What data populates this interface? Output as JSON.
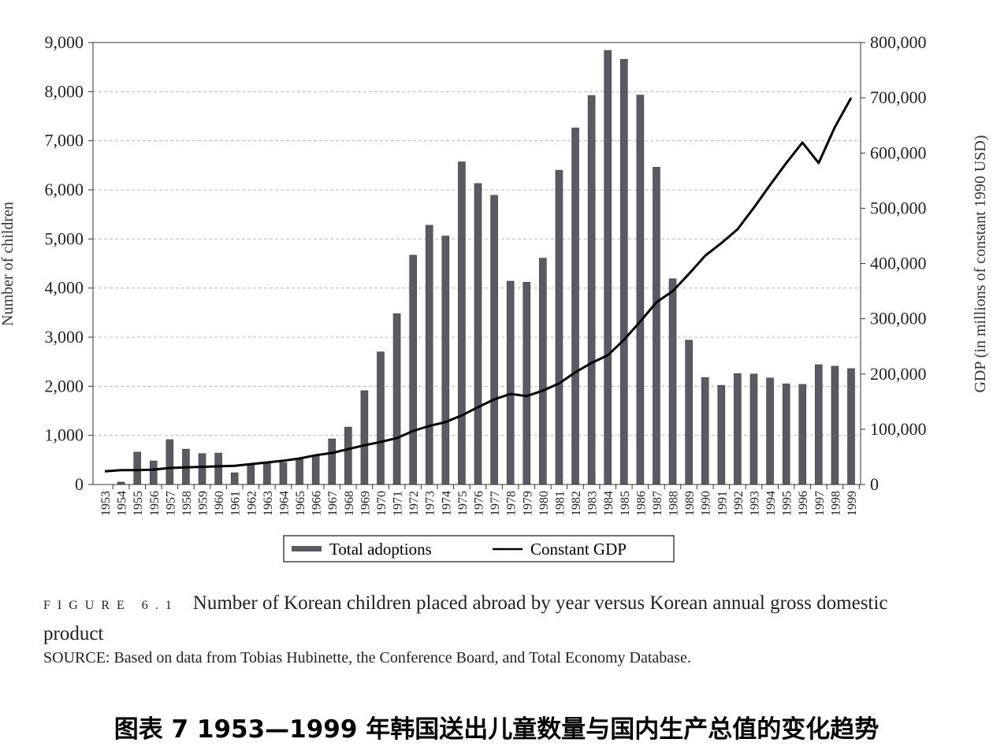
{
  "chart_data": {
    "type": "bar+line",
    "categories": [
      1953,
      1954,
      1955,
      1956,
      1957,
      1958,
      1959,
      1960,
      1961,
      1962,
      1963,
      1964,
      1965,
      1966,
      1967,
      1968,
      1969,
      1970,
      1971,
      1972,
      1973,
      1974,
      1975,
      1976,
      1977,
      1978,
      1979,
      1980,
      1981,
      1982,
      1983,
      1984,
      1985,
      1986,
      1987,
      1988,
      1989,
      1990,
      1991,
      1992,
      1993,
      1994,
      1995,
      1996,
      1997,
      1998,
      1999
    ],
    "series": [
      {
        "name": "Total adoptions",
        "type": "bar",
        "axis": "left",
        "color": "#5b5a60",
        "values": [
          0,
          50,
          660,
          480,
          915,
          720,
          630,
          640,
          240,
          415,
          430,
          450,
          515,
          590,
          930,
          1170,
          1910,
          2700,
          3480,
          4670,
          5280,
          5060,
          6570,
          6130,
          5890,
          4140,
          4120,
          4610,
          6400,
          7260,
          7920,
          8840,
          8660,
          7930,
          6460,
          4190,
          2940,
          2180,
          2020,
          2260,
          2250,
          2170,
          2050,
          2040,
          2440,
          2410,
          2360
        ]
      },
      {
        "name": "Constant GDP",
        "type": "line",
        "axis": "right",
        "color": "#000000",
        "values": [
          24000,
          26000,
          26000,
          27000,
          30000,
          31000,
          32000,
          33000,
          34000,
          37000,
          40000,
          43000,
          47000,
          53000,
          57000,
          64000,
          71000,
          77000,
          84000,
          97000,
          106000,
          113000,
          125000,
          140000,
          154000,
          164000,
          160000,
          170000,
          183000,
          203000,
          220000,
          234000,
          262000,
          295000,
          330000,
          350000,
          381000,
          414000,
          437000,
          462000,
          501000,
          542000,
          582000,
          619000,
          582000,
          647000,
          700000
        ]
      }
    ],
    "ylabel": "Number of children",
    "ylim": [
      0,
      9000
    ],
    "yticks": [
      "0",
      "1,000",
      "2,000",
      "3,000",
      "4,000",
      "5,000",
      "6,000",
      "7,000",
      "8,000",
      "9,000"
    ],
    "y2label": "GDP (in millions of constant 1990 USD)",
    "y2lim": [
      0,
      800000
    ],
    "y2ticks": [
      "0",
      "100,000",
      "200,000",
      "300,000",
      "400,000",
      "500,000",
      "600,000",
      "700,000",
      "800,000"
    ],
    "grid": "horizontal dashed",
    "legend_placement": "bottom-center"
  },
  "caption": {
    "figure_label": "FIGURE 6.1",
    "figure_text": "Number of Korean children placed abroad by year versus Korean annual gross domestic product",
    "source_label": "SOURCE:",
    "source_text": "Based on data from Tobias Hubinette, the Conference Board, and Total Economy Database."
  },
  "chinese_title": "图表 7 1953—1999 年韩国送出儿童数量与国内生产总值的变化趋势"
}
